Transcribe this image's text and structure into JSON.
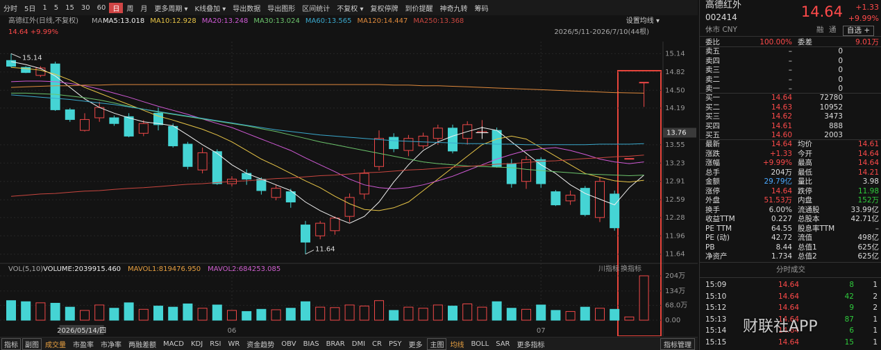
{
  "toolbar": {
    "items": [
      "分时",
      "5日",
      "1",
      "5",
      "15",
      "30",
      "60",
      "日",
      "周",
      "月",
      "更多周期 ▾",
      "K线叠加 ▾",
      "导出数据",
      "导出图形",
      "区间统计",
      "不复权 ▾",
      "复权停牌",
      "到价提醒",
      "神奇九转",
      "筹码"
    ],
    "active": 7
  },
  "chart_data": [
    {
      "type": "candlestick",
      "title": "高德红外(日线,不复权)",
      "ma_label": "MA",
      "settings": "设置均线 ▾",
      "range": "2026/5/11-2026/7/10(44根)",
      "quote": "14.64 +9.99%",
      "categories": [
        null,
        null,
        null,
        "2026/05/14/四",
        null,
        null,
        null,
        null,
        null,
        null,
        null,
        null,
        null,
        null,
        null,
        "06",
        null,
        null,
        null,
        null,
        null,
        null,
        null,
        null,
        null,
        null,
        null,
        null,
        null,
        null,
        null,
        null,
        null,
        null,
        null,
        null,
        "07",
        null,
        null,
        null,
        null,
        null,
        null,
        null
      ],
      "open": [
        15.02,
        14.9,
        14.76,
        14.96,
        14.16,
        13.8,
        14.02,
        14.02,
        14.04,
        13.75,
        14.1,
        13.87,
        13.56,
        13.11,
        13.43,
        12.87,
        13.05,
        12.95,
        12.63,
        12.73,
        12.15,
        11.96,
        12.05,
        12.3,
        12.69,
        13.17,
        13.68,
        13.45,
        13.53,
        13.66,
        13.84,
        13.66,
        13.76,
        13.8,
        13.22,
        12.91,
        13.29,
        12.73,
        12.57,
        12.79,
        12.28,
        12.69,
        13.31,
        14.64
      ],
      "high": [
        15.14,
        14.92,
        14.92,
        15.0,
        14.19,
        14.1,
        14.3,
        14.06,
        14.1,
        13.98,
        14.2,
        13.92,
        13.6,
        13.5,
        13.47,
        13.0,
        13.12,
        12.98,
        12.85,
        12.78,
        12.22,
        12.22,
        12.3,
        12.7,
        13.12,
        13.8,
        13.75,
        13.72,
        13.76,
        13.9,
        13.9,
        13.96,
        13.98,
        13.85,
        13.3,
        13.35,
        13.33,
        12.76,
        12.75,
        12.83,
        12.99,
        12.75,
        13.31,
        14.64
      ],
      "low": [
        14.9,
        14.8,
        14.73,
        14.14,
        13.95,
        13.78,
        13.95,
        13.88,
        13.68,
        13.7,
        13.8,
        13.5,
        13.12,
        13.05,
        12.85,
        12.82,
        12.85,
        12.68,
        12.58,
        12.45,
        11.64,
        11.9,
        11.98,
        12.2,
        12.6,
        13.1,
        13.42,
        13.35,
        13.48,
        13.55,
        13.4,
        13.55,
        13.74,
        13.15,
        12.8,
        12.78,
        12.8,
        12.48,
        12.5,
        12.3,
        12.2,
        12.05,
        13.31,
        14.21
      ],
      "close": [
        14.92,
        14.81,
        14.89,
        14.16,
        13.99,
        13.99,
        14.2,
        13.92,
        13.7,
        13.92,
        13.9,
        13.53,
        13.17,
        13.41,
        12.87,
        12.95,
        12.95,
        12.75,
        12.79,
        12.55,
        11.85,
        12.18,
        12.27,
        12.63,
        13.05,
        13.66,
        13.48,
        13.66,
        13.7,
        13.84,
        13.44,
        13.9,
        13.78,
        13.17,
        12.87,
        13.29,
        12.87,
        12.5,
        12.67,
        12.33,
        12.91,
        12.1,
        13.31,
        14.64
      ],
      "series": [
        {
          "name": "MA5:13.018",
          "color": "#f0f0f0",
          "values": [
            15.0,
            14.95,
            14.88,
            14.75,
            14.55,
            14.35,
            14.2,
            14.1,
            14.02,
            13.95,
            13.92,
            13.88,
            13.72,
            13.55,
            13.4,
            13.2,
            13.05,
            12.95,
            12.85,
            12.75,
            12.55,
            12.4,
            12.28,
            12.18,
            12.3,
            12.55,
            12.9,
            13.2,
            13.45,
            13.6,
            13.7,
            13.78,
            13.85,
            13.8,
            13.6,
            13.4,
            13.2,
            13.05,
            12.85,
            12.7,
            12.6,
            12.5,
            12.8,
            13.02
          ]
        },
        {
          "name": "MA10:12.928",
          "color": "#e8c547",
          "values": [
            14.9,
            14.88,
            14.85,
            14.78,
            14.68,
            14.55,
            14.45,
            14.35,
            14.25,
            14.15,
            14.05,
            13.98,
            13.9,
            13.82,
            13.72,
            13.6,
            13.45,
            13.3,
            13.18,
            13.05,
            12.92,
            12.8,
            12.65,
            12.52,
            12.42,
            12.4,
            12.45,
            12.55,
            12.75,
            12.95,
            13.15,
            13.35,
            13.55,
            13.65,
            13.7,
            13.65,
            13.5,
            13.35,
            13.2,
            13.05,
            12.98,
            12.92,
            12.9,
            12.93
          ]
        },
        {
          "name": "MA20:13.248",
          "color": "#d05ad6",
          "values": [
            14.65,
            14.66,
            14.66,
            14.65,
            14.62,
            14.58,
            14.52,
            14.45,
            14.38,
            14.3,
            14.22,
            14.15,
            14.08,
            14.0,
            13.92,
            13.85,
            13.75,
            13.65,
            13.55,
            13.45,
            13.32,
            13.2,
            13.08,
            12.95,
            12.85,
            12.8,
            12.78,
            12.8,
            12.85,
            12.92,
            13.0,
            13.1,
            13.2,
            13.3,
            13.38,
            13.45,
            13.48,
            13.5,
            13.45,
            13.38,
            13.3,
            13.25,
            13.22,
            13.25
          ]
        },
        {
          "name": "MA30:13.024",
          "color": "#6cc46c",
          "values": [
            14.45,
            14.45,
            14.44,
            14.43,
            14.4,
            14.37,
            14.33,
            14.28,
            14.22,
            14.17,
            14.12,
            14.08,
            14.04,
            14.0,
            13.96,
            13.92,
            13.88,
            13.83,
            13.78,
            13.72,
            13.66,
            13.6,
            13.55,
            13.5,
            13.45,
            13.4,
            13.35,
            13.3,
            13.25,
            13.22,
            13.2,
            13.18,
            13.17,
            13.16,
            13.15,
            13.12,
            13.1,
            13.08,
            13.06,
            13.04,
            13.03,
            13.02,
            13.01,
            13.02
          ]
        },
        {
          "name": "MA60:13.565",
          "color": "#3aa8cc",
          "values": [
            14.42,
            14.4,
            14.38,
            14.36,
            14.34,
            14.31,
            14.28,
            14.25,
            14.21,
            14.17,
            14.13,
            14.09,
            14.05,
            14.01,
            13.97,
            13.93,
            13.89,
            13.85,
            13.81,
            13.78,
            13.75,
            13.72,
            13.7,
            13.68,
            13.66,
            13.64,
            13.62,
            13.61,
            13.6,
            13.59,
            13.58,
            13.57,
            13.57,
            13.56,
            13.56,
            13.55,
            13.55,
            13.55,
            13.55,
            13.55,
            13.56,
            13.56,
            13.56,
            13.57
          ]
        },
        {
          "name": "MA120:14.447",
          "color": "#e08a3c",
          "values": [
            14.55,
            14.56,
            14.57,
            14.58,
            14.58,
            14.59,
            14.59,
            14.6,
            14.6,
            14.6,
            14.6,
            14.6,
            14.6,
            14.6,
            14.6,
            14.6,
            14.6,
            14.6,
            14.6,
            14.6,
            14.6,
            14.6,
            14.6,
            14.6,
            14.6,
            14.6,
            14.59,
            14.59,
            14.58,
            14.58,
            14.57,
            14.56,
            14.55,
            14.54,
            14.53,
            14.52,
            14.51,
            14.5,
            14.49,
            14.48,
            14.47,
            14.46,
            14.455,
            14.45
          ]
        },
        {
          "name": "MA250:13.368",
          "color": "#c9463f",
          "values": [
            12.65,
            12.67,
            12.69,
            12.7,
            12.72,
            12.74,
            12.75,
            12.77,
            12.79,
            12.8,
            12.82,
            12.84,
            12.86,
            12.87,
            12.89,
            12.91,
            12.92,
            12.94,
            12.96,
            12.97,
            12.99,
            13.01,
            13.02,
            13.04,
            13.06,
            13.07,
            13.09,
            13.11,
            13.12,
            13.14,
            13.16,
            13.17,
            13.19,
            13.21,
            13.22,
            13.24,
            13.26,
            13.27,
            13.29,
            13.31,
            13.32,
            13.34,
            13.35,
            13.37
          ]
        }
      ],
      "up_color": "#f04848",
      "down_color": "#45d4d4",
      "ylim": [
        11.54,
        15.35
      ],
      "yticks": [
        15.14,
        14.82,
        {
          "value": 14.5,
          "label": "14.50"
        },
        14.19,
        13.55,
        13.23,
        12.91,
        12.59,
        12.28,
        11.96,
        11.64
      ],
      "crosshair": 13.76,
      "high_marker": 15.14,
      "low_marker": 11.64,
      "grid": true
    },
    {
      "type": "bar",
      "title": "VOL(5,10)",
      "annotations": [
        "VOLUME:2039915.460",
        "MAVOL1:819476.950",
        "MAVOL2:684253.085"
      ],
      "buttons": [
        "川指标",
        "换指标"
      ],
      "values": [
        90,
        85,
        80,
        78,
        60,
        45,
        70,
        55,
        80,
        50,
        65,
        60,
        75,
        55,
        70,
        45,
        40,
        50,
        48,
        55,
        85,
        60,
        58,
        70,
        65,
        90,
        45,
        60,
        55,
        70,
        65,
        75,
        60,
        85,
        55,
        50,
        70,
        45,
        40,
        60,
        55,
        50,
        15,
        204
      ],
      "ylim": [
        0,
        215
      ],
      "yticks": [
        {
          "value": 204,
          "label": "204万"
        },
        {
          "value": 134,
          "label": "134万"
        },
        {
          "value": 68,
          "label": "68.0万"
        },
        {
          "value": 0,
          "label": "0.00"
        }
      ]
    }
  ],
  "quote": {
    "name": "高德红外",
    "code": "002414",
    "price": "14.64",
    "change": "+1.33",
    "pct": "+9.99%",
    "status": "休市 CNY",
    "tags": [
      "融",
      "通",
      "自选 +"
    ]
  },
  "order_ratio": [
    "委比",
    "100.00%",
    "委差",
    "9.01万"
  ],
  "asks": [
    [
      "卖五",
      "–",
      "0"
    ],
    [
      "卖四",
      "–",
      "0"
    ],
    [
      "卖三",
      "–",
      "0"
    ],
    [
      "卖二",
      "–",
      "0"
    ],
    [
      "卖一",
      "–",
      "0"
    ]
  ],
  "bids": [
    [
      "买一",
      "14.64",
      "72780"
    ],
    [
      "买二",
      "14.63",
      "10952"
    ],
    [
      "买三",
      "14.62",
      "3473"
    ],
    [
      "买四",
      "14.61",
      "888"
    ],
    [
      "买五",
      "14.60",
      "2003"
    ]
  ],
  "stats": [
    [
      "最新",
      "14.64",
      "均价",
      "14.61"
    ],
    [
      "涨跌",
      "+1.33",
      "今开",
      "14.64"
    ],
    [
      "涨幅",
      "+9.99%",
      "最高",
      "14.64"
    ],
    [
      "总手",
      "204万",
      "最低",
      "14.21"
    ],
    [
      "金额",
      "29.79亿",
      "量比",
      "3.98"
    ],
    [
      "涨停",
      "14.64",
      "跌停",
      "11.98"
    ],
    [
      "外盘",
      "51.53万",
      "内盘",
      "152万"
    ],
    [
      "换手",
      "6.00%",
      "流通股",
      "33.99亿"
    ],
    [
      "收益TTM",
      "0.227",
      "总股本",
      "42.71亿"
    ],
    [
      "PE TTM",
      "64.55",
      "股息率TTM",
      "–"
    ],
    [
      "PE (动)",
      "42.72",
      "流值",
      "498亿"
    ],
    [
      "PB",
      "8.44",
      "总值1",
      "625亿"
    ],
    [
      "净资产",
      "1.734",
      "总值2",
      "625亿"
    ]
  ],
  "trades": {
    "title": "分时成交",
    "rows": [
      [
        "15:09",
        "14.64",
        "8",
        "1"
      ],
      [
        "15:10",
        "14.64",
        "42",
        "2"
      ],
      [
        "15:12",
        "14.64",
        "9",
        "2"
      ],
      [
        "15:13",
        "14.64",
        "87",
        "1"
      ],
      [
        "15:14",
        "14.64",
        "6",
        "1"
      ],
      [
        "15:15",
        "14.64",
        "15",
        "1"
      ]
    ]
  },
  "bottom_toolbar": {
    "items": [
      "指标",
      "副图",
      "成交量",
      "市盈率",
      "市净率",
      "两融差额",
      "MACD",
      "KDJ",
      "RSI",
      "WR",
      "资金趋势",
      "OBV",
      "BIAS",
      "BRAR",
      "DMI",
      "CR",
      "PSY",
      "更多",
      "主图",
      "均线",
      "BOLL",
      "SAR",
      "更多指标"
    ],
    "right": "指标管理"
  },
  "watermark": "财联社APP"
}
